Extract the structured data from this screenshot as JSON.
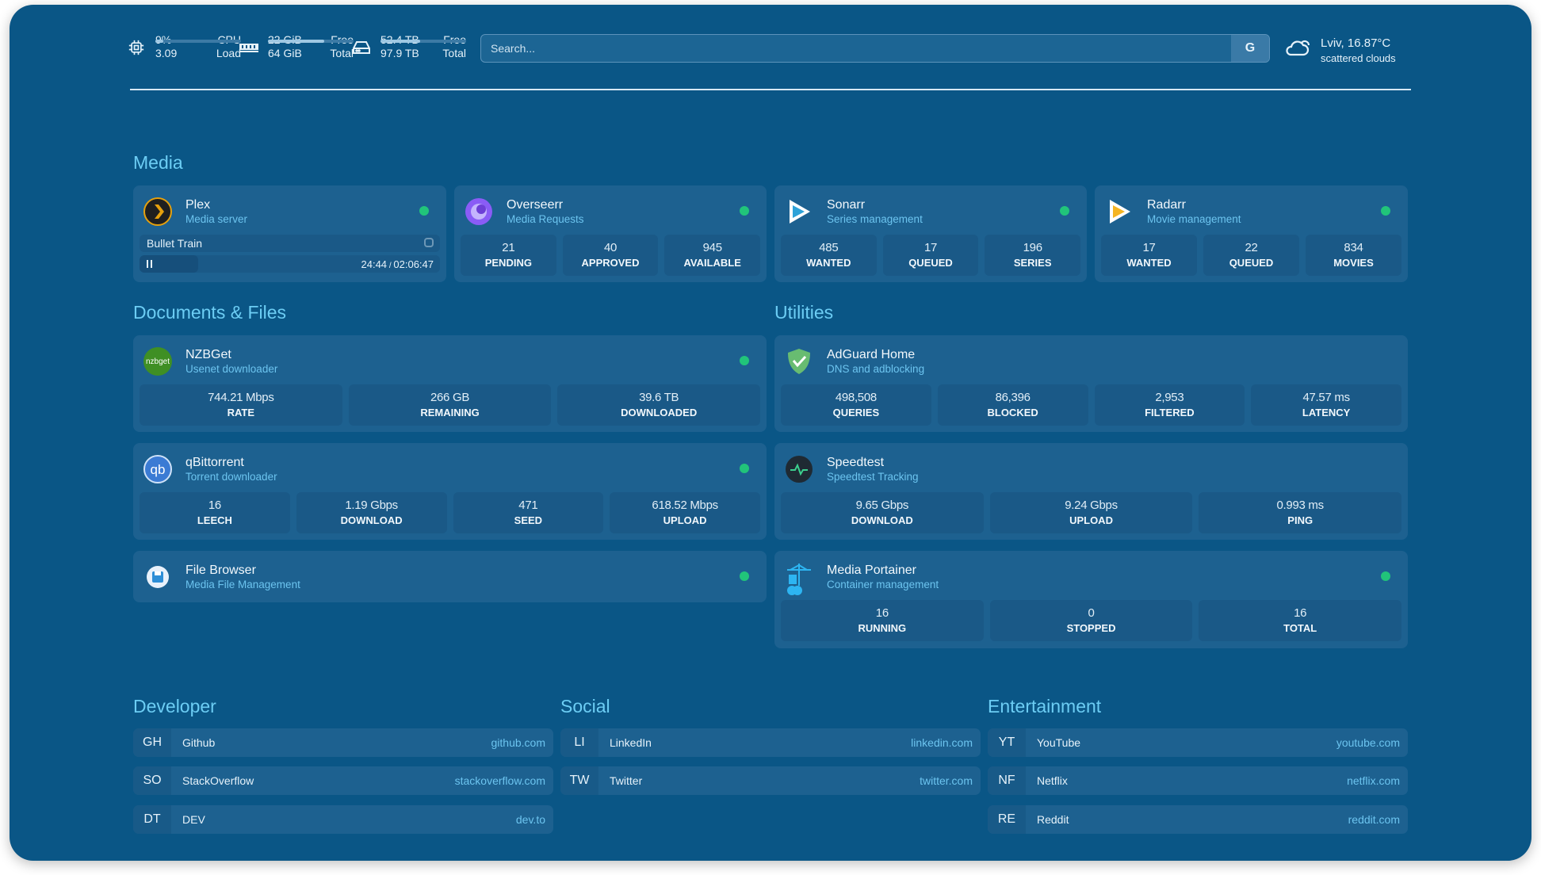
{
  "header": {
    "cpu": {
      "percent": "9%",
      "load": "3.09",
      "label1": "CPU",
      "label2": "Load",
      "usage_fraction": 0.09,
      "icon": "cpu-icon"
    },
    "memory": {
      "free": "22 GiB",
      "total": "64 GiB",
      "label1": "Free",
      "label2": "Total",
      "usage_fraction": 0.66,
      "icon": "memory-icon"
    },
    "disk": {
      "free": "52.4 TB",
      "total": "97.9 TB",
      "label1": "Free",
      "label2": "Total",
      "usage_fraction": 0.46,
      "icon": "hard-drive-icon"
    },
    "search": {
      "placeholder": "Search...",
      "button": "G"
    },
    "weather": {
      "location_temp": "Lviv, 16.87°C",
      "condition": "scattered clouds",
      "icon": "cloud-icon"
    }
  },
  "sections": {
    "media": "Media",
    "documents": "Documents & Files",
    "utilities": "Utilities",
    "developer": "Developer",
    "social": "Social",
    "entertainment": "Entertainment"
  },
  "cards": [
    {
      "id": "plex",
      "title": "Plex",
      "subtitle": "Media server",
      "status": "online",
      "icon": "plex-icon",
      "now_playing": {
        "title": "Bullet Train",
        "elapsed": "24:44",
        "duration": "02:06:47",
        "progress": 0.195,
        "state": "playing"
      }
    },
    {
      "id": "overseerr",
      "title": "Overseerr",
      "subtitle": "Media Requests",
      "status": "online",
      "icon": "overseerr-icon",
      "stats": [
        {
          "value": "21",
          "label": "PENDING"
        },
        {
          "value": "40",
          "label": "APPROVED"
        },
        {
          "value": "945",
          "label": "AVAILABLE"
        }
      ]
    },
    {
      "id": "sonarr",
      "title": "Sonarr",
      "subtitle": "Series management",
      "status": "online",
      "icon": "sonarr-icon",
      "stats": [
        {
          "value": "485",
          "label": "WANTED"
        },
        {
          "value": "17",
          "label": "QUEUED"
        },
        {
          "value": "196",
          "label": "SERIES"
        }
      ]
    },
    {
      "id": "radarr",
      "title": "Radarr",
      "subtitle": "Movie management",
      "status": "online",
      "icon": "radarr-icon",
      "stats": [
        {
          "value": "17",
          "label": "WANTED"
        },
        {
          "value": "22",
          "label": "QUEUED"
        },
        {
          "value": "834",
          "label": "MOVIES"
        }
      ]
    },
    {
      "id": "nzbget",
      "title": "NZBGet",
      "subtitle": "Usenet downloader",
      "status": "online",
      "icon": "nzbget-icon",
      "icon_text": "nzbget",
      "stats": [
        {
          "value": "744.21 Mbps",
          "label": "RATE"
        },
        {
          "value": "266 GB",
          "label": "REMAINING"
        },
        {
          "value": "39.6 TB",
          "label": "DOWNLOADED"
        }
      ]
    },
    {
      "id": "qbittorrent",
      "title": "qBittorrent",
      "subtitle": "Torrent downloader",
      "status": "online",
      "icon": "qbittorrent-icon",
      "icon_text": "qb",
      "stats": [
        {
          "value": "16",
          "label": "LEECH"
        },
        {
          "value": "1.19 Gbps",
          "label": "DOWNLOAD"
        },
        {
          "value": "471",
          "label": "SEED"
        },
        {
          "value": "618.52 Mbps",
          "label": "UPLOAD"
        }
      ]
    },
    {
      "id": "filebrowser",
      "title": "File Browser",
      "subtitle": "Media File Management",
      "status": "online",
      "icon": "file-browser-icon"
    },
    {
      "id": "adguard",
      "title": "AdGuard Home",
      "subtitle": "DNS and adblocking",
      "icon": "adguard-shield-icon",
      "stats": [
        {
          "value": "498,508",
          "label": "QUERIES"
        },
        {
          "value": "86,396",
          "label": "BLOCKED"
        },
        {
          "value": "2,953",
          "label": "FILTERED"
        },
        {
          "value": "47.57 ms",
          "label": "LATENCY"
        }
      ]
    },
    {
      "id": "speedtest",
      "title": "Speedtest",
      "subtitle": "Speedtest Tracking",
      "icon": "speedtest-icon",
      "stats": [
        {
          "value": "9.65 Gbps",
          "label": "DOWNLOAD"
        },
        {
          "value": "9.24 Gbps",
          "label": "UPLOAD"
        },
        {
          "value": "0.993 ms",
          "label": "PING"
        }
      ]
    },
    {
      "id": "portainer",
      "title": "Media Portainer",
      "subtitle": "Container management",
      "status": "online",
      "icon": "portainer-icon",
      "stats": [
        {
          "value": "16",
          "label": "RUNNING"
        },
        {
          "value": "0",
          "label": "STOPPED"
        },
        {
          "value": "16",
          "label": "TOTAL"
        }
      ]
    }
  ],
  "bookmarks": {
    "developer": [
      {
        "abbr": "GH",
        "name": "Github",
        "url": "github.com"
      },
      {
        "abbr": "SO",
        "name": "StackOverflow",
        "url": "stackoverflow.com"
      },
      {
        "abbr": "DT",
        "name": "DEV",
        "url": "dev.to"
      }
    ],
    "social": [
      {
        "abbr": "LI",
        "name": "LinkedIn",
        "url": "linkedin.com"
      },
      {
        "abbr": "TW",
        "name": "Twitter",
        "url": "twitter.com"
      }
    ],
    "entertainment": [
      {
        "abbr": "YT",
        "name": "YouTube",
        "url": "youtube.com"
      },
      {
        "abbr": "NF",
        "name": "Netflix",
        "url": "netflix.com"
      },
      {
        "abbr": "RE",
        "name": "Reddit",
        "url": "reddit.com"
      }
    ]
  },
  "colors": {
    "background": "#0a5686",
    "card": "#1d6190",
    "accent": "#6ccdf4",
    "status_online": "#21c47a"
  }
}
